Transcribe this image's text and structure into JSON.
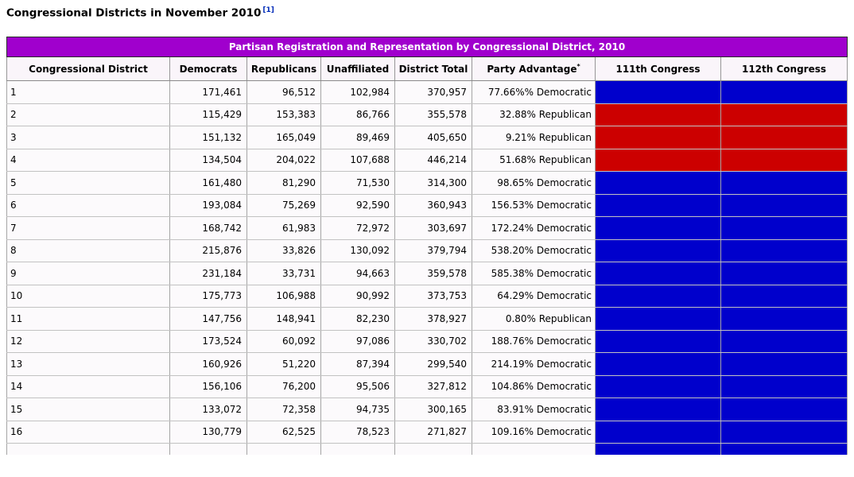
{
  "page": {
    "title": "Congressional Districts in November 2010",
    "citation": "[1]"
  },
  "table": {
    "banner": "Partisan Registration and Representation by Congressional District, 2010",
    "columns": [
      "Congressional District",
      "Democrats",
      "Republicans",
      "Unaffiliated",
      "District Total",
      "Party Advantage",
      "111th Congress",
      "112th Congress"
    ],
    "footnote_marker": "*",
    "colors": {
      "democratic": "#0000cc",
      "republican": "#cc0000",
      "banner": "#a000cd"
    },
    "rows": [
      {
        "district": "1",
        "democrats": "171,461",
        "republicans": "96,512",
        "unaffiliated": "102,984",
        "total": "370,957",
        "advantage": "77.66%% Democratic",
        "congress_111": "Democratic",
        "congress_112": "Democratic",
        "partial": false
      },
      {
        "district": "2",
        "democrats": "115,429",
        "republicans": "153,383",
        "unaffiliated": "86,766",
        "total": "355,578",
        "advantage": "32.88% Republican",
        "congress_111": "Republican",
        "congress_112": "Republican",
        "partial": false
      },
      {
        "district": "3",
        "democrats": "151,132",
        "republicans": "165,049",
        "unaffiliated": "89,469",
        "total": "405,650",
        "advantage": "9.21% Republican",
        "congress_111": "Republican",
        "congress_112": "Republican",
        "partial": false
      },
      {
        "district": "4",
        "democrats": "134,504",
        "republicans": "204,022",
        "unaffiliated": "107,688",
        "total": "446,214",
        "advantage": "51.68% Republican",
        "congress_111": "Republican",
        "congress_112": "Republican",
        "partial": false
      },
      {
        "district": "5",
        "democrats": "161,480",
        "republicans": "81,290",
        "unaffiliated": "71,530",
        "total": "314,300",
        "advantage": "98.65% Democratic",
        "congress_111": "Democratic",
        "congress_112": "Democratic",
        "partial": false
      },
      {
        "district": "6",
        "democrats": "193,084",
        "republicans": "75,269",
        "unaffiliated": "92,590",
        "total": "360,943",
        "advantage": "156.53% Democratic",
        "congress_111": "Democratic",
        "congress_112": "Democratic",
        "partial": false
      },
      {
        "district": "7",
        "democrats": "168,742",
        "republicans": "61,983",
        "unaffiliated": "72,972",
        "total": "303,697",
        "advantage": "172.24% Democratic",
        "congress_111": "Democratic",
        "congress_112": "Democratic",
        "partial": false
      },
      {
        "district": "8",
        "democrats": "215,876",
        "republicans": "33,826",
        "unaffiliated": "130,092",
        "total": "379,794",
        "advantage": "538.20% Democratic",
        "congress_111": "Democratic",
        "congress_112": "Democratic",
        "partial": false
      },
      {
        "district": "9",
        "democrats": "231,184",
        "republicans": "33,731",
        "unaffiliated": "94,663",
        "total": "359,578",
        "advantage": "585.38% Democratic",
        "congress_111": "Democratic",
        "congress_112": "Democratic",
        "partial": false
      },
      {
        "district": "10",
        "democrats": "175,773",
        "republicans": "106,988",
        "unaffiliated": "90,992",
        "total": "373,753",
        "advantage": "64.29% Democratic",
        "congress_111": "Democratic",
        "congress_112": "Democratic",
        "partial": false
      },
      {
        "district": "11",
        "democrats": "147,756",
        "republicans": "148,941",
        "unaffiliated": "82,230",
        "total": "378,927",
        "advantage": "0.80% Republican",
        "congress_111": "Democratic",
        "congress_112": "Democratic",
        "partial": false
      },
      {
        "district": "12",
        "democrats": "173,524",
        "republicans": "60,092",
        "unaffiliated": "97,086",
        "total": "330,702",
        "advantage": "188.76% Democratic",
        "congress_111": "Democratic",
        "congress_112": "Democratic",
        "partial": false
      },
      {
        "district": "13",
        "democrats": "160,926",
        "republicans": "51,220",
        "unaffiliated": "87,394",
        "total": "299,540",
        "advantage": "214.19% Democratic",
        "congress_111": "Democratic",
        "congress_112": "Democratic",
        "partial": false
      },
      {
        "district": "14",
        "democrats": "156,106",
        "republicans": "76,200",
        "unaffiliated": "95,506",
        "total": "327,812",
        "advantage": "104.86% Democratic",
        "congress_111": "Democratic",
        "congress_112": "Democratic",
        "partial": false
      },
      {
        "district": "15",
        "democrats": "133,072",
        "republicans": "72,358",
        "unaffiliated": "94,735",
        "total": "300,165",
        "advantage": "83.91% Democratic",
        "congress_111": "Democratic",
        "congress_112": "Democratic",
        "partial": false
      },
      {
        "district": "16",
        "democrats": "130,779",
        "republicans": "62,525",
        "unaffiliated": "78,523",
        "total": "271,827",
        "advantage": "109.16% Democratic",
        "congress_111": "Democratic",
        "congress_112": "Democratic",
        "partial": false
      },
      {
        "district": "",
        "democrats": "",
        "republicans": "",
        "unaffiliated": "",
        "total": "",
        "advantage": "",
        "congress_111": "Democratic",
        "congress_112": "Democratic",
        "partial": true
      }
    ]
  }
}
